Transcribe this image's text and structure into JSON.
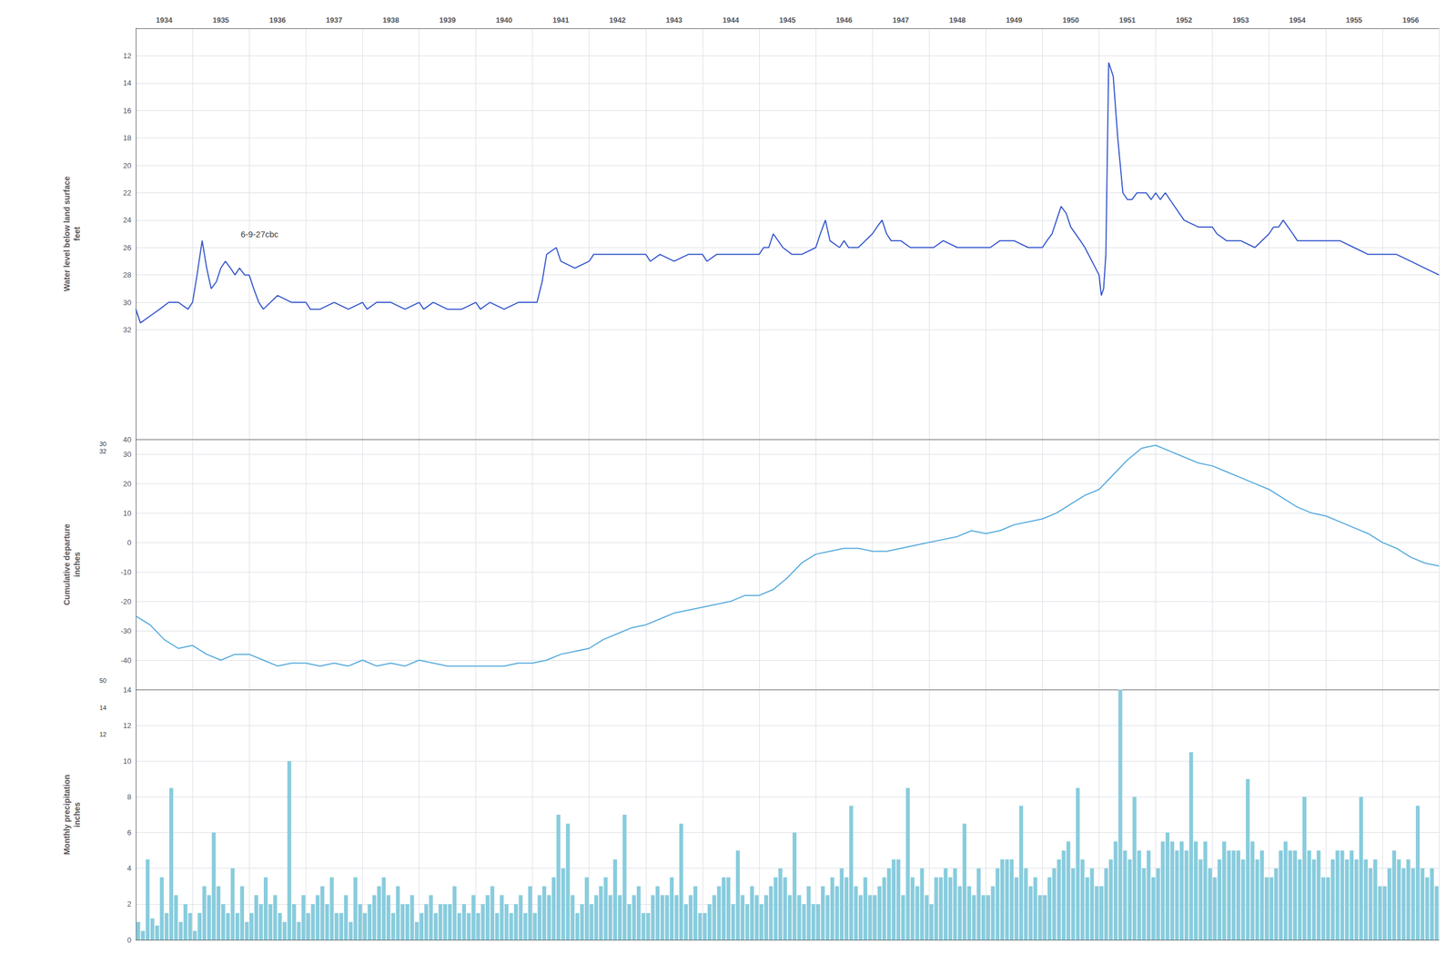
{
  "chart_data": [
    {
      "type": "line",
      "ylabel": "Water level below land surface\nfeet",
      "xlim": [
        1934.0,
        1957.0
      ],
      "xticks": [
        {
          "value": 1934.5,
          "label": "1934"
        },
        {
          "value": 1935.5,
          "label": "1935"
        },
        {
          "value": 1936.5,
          "label": "1936"
        },
        {
          "value": 1937.5,
          "label": "1937"
        },
        {
          "value": 1938.5,
          "label": "1938"
        },
        {
          "value": 1939.5,
          "label": "1939"
        },
        {
          "value": 1940.5,
          "label": "1940"
        },
        {
          "value": 1941.5,
          "label": "1941"
        },
        {
          "value": 1942.5,
          "label": "1942"
        },
        {
          "value": 1943.5,
          "label": "1943"
        },
        {
          "value": 1944.5,
          "label": "1944"
        },
        {
          "value": 1945.5,
          "label": "1945"
        },
        {
          "value": 1946.5,
          "label": "1946"
        },
        {
          "value": 1947.5,
          "label": "1947"
        },
        {
          "value": 1948.5,
          "label": "1948"
        },
        {
          "value": 1949.5,
          "label": "1949"
        },
        {
          "value": 1950.5,
          "label": "1950"
        },
        {
          "value": 1951.5,
          "label": "1951"
        },
        {
          "value": 1952.5,
          "label": "1952"
        },
        {
          "value": 1953.5,
          "label": "1953"
        },
        {
          "value": 1954.5,
          "label": "1954"
        },
        {
          "value": 1955.5,
          "label": "1955"
        },
        {
          "value": 1956.5,
          "label": "1956"
        }
      ],
      "ylim": [
        40,
        10
      ],
      "yticks": [
        12,
        14,
        16,
        18,
        20,
        22,
        24,
        26,
        28,
        30,
        32,
        40
      ],
      "grid": true,
      "color": "#3355cc",
      "annotations": [
        {
          "text": "6-9-27cbc",
          "x": 1935.8,
          "y": 25.0
        }
      ],
      "x": [
        1934.0,
        1934.08,
        1934.25,
        1934.42,
        1934.58,
        1934.75,
        1934.92,
        1935.0,
        1935.08,
        1935.17,
        1935.25,
        1935.33,
        1935.42,
        1935.5,
        1935.58,
        1935.67,
        1935.75,
        1935.83,
        1935.92,
        1936.0,
        1936.08,
        1936.17,
        1936.25,
        1936.5,
        1936.75,
        1937.0,
        1937.08,
        1937.17,
        1937.25,
        1937.5,
        1937.75,
        1938.0,
        1938.08,
        1938.25,
        1938.5,
        1938.75,
        1939.0,
        1939.08,
        1939.25,
        1939.5,
        1939.75,
        1940.0,
        1940.08,
        1940.25,
        1940.5,
        1940.75,
        1941.0,
        1941.08,
        1941.17,
        1941.25,
        1941.42,
        1941.5,
        1941.75,
        1942.0,
        1942.08,
        1942.25,
        1942.5,
        1942.75,
        1943.0,
        1943.08,
        1943.25,
        1943.5,
        1943.75,
        1944.0,
        1944.08,
        1944.25,
        1944.5,
        1944.75,
        1945.0,
        1945.08,
        1945.17,
        1945.25,
        1945.42,
        1945.58,
        1945.75,
        1946.0,
        1946.08,
        1946.17,
        1946.25,
        1946.42,
        1946.5,
        1946.58,
        1946.75,
        1947.0,
        1947.08,
        1947.17,
        1947.25,
        1947.33,
        1947.5,
        1947.67,
        1947.75,
        1948.0,
        1948.08,
        1948.25,
        1948.5,
        1948.75,
        1949.0,
        1949.08,
        1949.25,
        1949.5,
        1949.75,
        1950.0,
        1950.08,
        1950.17,
        1950.25,
        1950.33,
        1950.42,
        1950.5,
        1950.67,
        1950.75,
        1951.0,
        1951.04,
        1951.08,
        1951.12,
        1951.17,
        1951.25,
        1951.33,
        1951.42,
        1951.5,
        1951.58,
        1951.67,
        1951.75,
        1951.83,
        1951.92,
        1952.0,
        1952.08,
        1952.17,
        1952.25,
        1952.5,
        1952.75,
        1953.0,
        1953.08,
        1953.25,
        1953.5,
        1953.75,
        1954.0,
        1954.08,
        1954.17,
        1954.25,
        1954.42,
        1954.5,
        1954.75,
        1955.0,
        1955.08,
        1955.25,
        1955.5,
        1955.75,
        1956.0,
        1956.08,
        1956.25,
        1956.5,
        1956.75,
        1957.0
      ],
      "values": [
        30.5,
        31.5,
        31.0,
        30.5,
        30.0,
        30.0,
        30.5,
        30.0,
        28.0,
        25.5,
        27.5,
        29.0,
        28.5,
        27.5,
        27.0,
        27.5,
        28.0,
        27.5,
        28.0,
        28.0,
        29.0,
        30.0,
        30.5,
        29.5,
        30.0,
        30.0,
        30.5,
        30.5,
        30.5,
        30.0,
        30.5,
        30.0,
        30.5,
        30.0,
        30.0,
        30.5,
        30.0,
        30.5,
        30.0,
        30.5,
        30.5,
        30.0,
        30.5,
        30.0,
        30.5,
        30.0,
        30.0,
        30.0,
        28.5,
        26.5,
        26.0,
        27.0,
        27.5,
        27.0,
        26.5,
        26.5,
        26.5,
        26.5,
        26.5,
        27.0,
        26.5,
        27.0,
        26.5,
        26.5,
        27.0,
        26.5,
        26.5,
        26.5,
        26.5,
        26.0,
        26.0,
        25.0,
        26.0,
        26.5,
        26.5,
        26.0,
        25.0,
        24.0,
        25.5,
        26.0,
        25.5,
        26.0,
        26.0,
        25.0,
        24.5,
        24.0,
        25.0,
        25.5,
        25.5,
        26.0,
        26.0,
        26.0,
        26.0,
        25.5,
        26.0,
        26.0,
        26.0,
        26.0,
        25.5,
        25.5,
        26.0,
        26.0,
        25.5,
        25.0,
        24.0,
        23.0,
        23.5,
        24.5,
        25.5,
        26.0,
        28.0,
        29.5,
        29.0,
        26.5,
        12.5,
        13.5,
        18.0,
        22.0,
        22.5,
        22.5,
        22.0,
        22.0,
        22.0,
        22.5,
        22.0,
        22.5,
        22.0,
        22.5,
        24.0,
        24.5,
        24.5,
        25.0,
        25.5,
        25.5,
        26.0,
        25.0,
        24.5,
        24.5,
        24.0,
        25.0,
        25.5,
        25.5,
        25.5,
        25.5,
        25.5,
        26.0,
        26.5,
        26.5,
        26.5,
        26.5,
        27.0,
        27.5,
        28.0
      ]
    },
    {
      "type": "line",
      "ylabel": "Cumulative departure\ninches",
      "xlim": [
        1934.0,
        1957.0
      ],
      "ylim": [
        -50,
        35
      ],
      "yticks": [
        -40,
        -30,
        -20,
        -10,
        0,
        10,
        20,
        30
      ],
      "grid": true,
      "tick_labels": "y",
      "color": "#55aadd",
      "annotations": [
        {
          "text": "30",
          "y": 33.5
        },
        {
          "text": "32",
          "y": 31.0
        }
      ],
      "x": [
        1934.0,
        1934.25,
        1934.5,
        1934.75,
        1935.0,
        1935.25,
        1935.5,
        1935.75,
        1936.0,
        1936.25,
        1936.5,
        1936.75,
        1937.0,
        1937.25,
        1937.5,
        1937.75,
        1938.0,
        1938.25,
        1938.5,
        1938.75,
        1939.0,
        1939.25,
        1939.5,
        1939.75,
        1940.0,
        1940.25,
        1940.5,
        1940.75,
        1941.0,
        1941.25,
        1941.5,
        1941.75,
        1942.0,
        1942.25,
        1942.5,
        1942.75,
        1943.0,
        1943.25,
        1943.5,
        1943.75,
        1944.0,
        1944.25,
        1944.5,
        1944.75,
        1945.0,
        1945.25,
        1945.5,
        1945.75,
        1946.0,
        1946.25,
        1946.5,
        1946.75,
        1947.0,
        1947.25,
        1947.5,
        1947.75,
        1948.0,
        1948.25,
        1948.5,
        1948.75,
        1949.0,
        1949.25,
        1949.5,
        1949.75,
        1950.0,
        1950.25,
        1950.5,
        1950.75,
        1951.0,
        1951.25,
        1951.5,
        1951.75,
        1952.0,
        1952.25,
        1952.5,
        1952.75,
        1953.0,
        1953.25,
        1953.5,
        1953.75,
        1954.0,
        1954.25,
        1954.5,
        1954.75,
        1955.0,
        1955.25,
        1955.5,
        1955.75,
        1956.0,
        1956.25,
        1956.5,
        1956.75,
        1957.0
      ],
      "values": [
        -25,
        -28,
        -33,
        -36,
        -35,
        -38,
        -40,
        -38,
        -38,
        -40,
        -42,
        -41,
        -41,
        -42,
        -41,
        -42,
        -40,
        -42,
        -41,
        -42,
        -40,
        -41,
        -42,
        -42,
        -42,
        -42,
        -42,
        -41,
        -41,
        -40,
        -38,
        -37,
        -36,
        -33,
        -31,
        -29,
        -28,
        -26,
        -24,
        -23,
        -22,
        -21,
        -20,
        -18,
        -18,
        -16,
        -12,
        -7,
        -4,
        -3,
        -2,
        -2,
        -3,
        -3,
        -2,
        -1,
        0,
        1,
        2,
        4,
        3,
        4,
        6,
        7,
        8,
        10,
        13,
        16,
        18,
        23,
        28,
        32,
        33,
        31,
        29,
        27,
        26,
        24,
        22,
        20,
        18,
        15,
        12,
        10,
        9,
        7,
        5,
        3,
        0,
        -2,
        -5,
        -7,
        -8
      ]
    },
    {
      "type": "bar",
      "ylabel": "Monthly precipitation\ninches",
      "xlim": [
        1934.0,
        1957.0
      ],
      "ylim": [
        0,
        14
      ],
      "yticks": [
        0,
        2,
        4,
        6,
        8,
        10,
        12,
        14
      ],
      "grid": true,
      "tick_labels": "y",
      "color": "#88ccdd",
      "annotations": [
        {
          "text": "50",
          "y": 14.5
        },
        {
          "text": "14",
          "y": 13.0
        },
        {
          "text": "12",
          "y": 11.5
        }
      ],
      "x": [
        1934.042,
        1934.125,
        1934.208,
        1934.292,
        1934.375,
        1934.458,
        1934.542,
        1934.625,
        1934.708,
        1934.792,
        1934.875,
        1934.958,
        1935.042,
        1935.125,
        1935.208,
        1935.292,
        1935.375,
        1935.458,
        1935.542,
        1935.625,
        1935.708,
        1935.792,
        1935.875,
        1935.958,
        1936.042,
        1936.125,
        1936.208,
        1936.292,
        1936.375,
        1936.458,
        1936.542,
        1936.625,
        1936.708,
        1936.792,
        1936.875,
        1936.958,
        1937.042,
        1937.125,
        1937.208,
        1937.292,
        1937.375,
        1937.458,
        1937.542,
        1937.625,
        1937.708,
        1937.792,
        1937.875,
        1937.958,
        1938.042,
        1938.125,
        1938.208,
        1938.292,
        1938.375,
        1938.458,
        1938.542,
        1938.625,
        1938.708,
        1938.792,
        1938.875,
        1938.958,
        1939.042,
        1939.125,
        1939.208,
        1939.292,
        1939.375,
        1939.458,
        1939.542,
        1939.625,
        1939.708,
        1939.792,
        1939.875,
        1939.958,
        1940.042,
        1940.125,
        1940.208,
        1940.292,
        1940.375,
        1940.458,
        1940.542,
        1940.625,
        1940.708,
        1940.792,
        1940.875,
        1940.958,
        1941.042,
        1941.125,
        1941.208,
        1941.292,
        1941.375,
        1941.458,
        1941.542,
        1941.625,
        1941.708,
        1941.792,
        1941.875,
        1941.958,
        1942.042,
        1942.125,
        1942.208,
        1942.292,
        1942.375,
        1942.458,
        1942.542,
        1942.625,
        1942.708,
        1942.792,
        1942.875,
        1942.958,
        1943.042,
        1943.125,
        1943.208,
        1943.292,
        1943.375,
        1943.458,
        1943.542,
        1943.625,
        1943.708,
        1943.792,
        1943.875,
        1943.958,
        1944.042,
        1944.125,
        1944.208,
        1944.292,
        1944.375,
        1944.458,
        1944.542,
        1944.625,
        1944.708,
        1944.792,
        1944.875,
        1944.958,
        1945.042,
        1945.125,
        1945.208,
        1945.292,
        1945.375,
        1945.458,
        1945.542,
        1945.625,
        1945.708,
        1945.792,
        1945.875,
        1945.958,
        1946.042,
        1946.125,
        1946.208,
        1946.292,
        1946.375,
        1946.458,
        1946.542,
        1946.625,
        1946.708,
        1946.792,
        1946.875,
        1946.958,
        1947.042,
        1947.125,
        1947.208,
        1947.292,
        1947.375,
        1947.458,
        1947.542,
        1947.625,
        1947.708,
        1947.792,
        1947.875,
        1947.958,
        1948.042,
        1948.125,
        1948.208,
        1948.292,
        1948.375,
        1948.458,
        1948.542,
        1948.625,
        1948.708,
        1948.792,
        1948.875,
        1948.958,
        1949.042,
        1949.125,
        1949.208,
        1949.292,
        1949.375,
        1949.458,
        1949.542,
        1949.625,
        1949.708,
        1949.792,
        1949.875,
        1949.958,
        1950.042,
        1950.125,
        1950.208,
        1950.292,
        1950.375,
        1950.458,
        1950.542,
        1950.625,
        1950.708,
        1950.792,
        1950.875,
        1950.958,
        1951.042,
        1951.125,
        1951.208,
        1951.292,
        1951.375,
        1951.458,
        1951.542,
        1951.625,
        1951.708,
        1951.792,
        1951.875,
        1951.958,
        1952.042,
        1952.125,
        1952.208,
        1952.292,
        1952.375,
        1952.458,
        1952.542,
        1952.625,
        1952.708,
        1952.792,
        1952.875,
        1952.958,
        1953.042,
        1953.125,
        1953.208,
        1953.292,
        1953.375,
        1953.458,
        1953.542,
        1953.625,
        1953.708,
        1953.792,
        1953.875,
        1953.958,
        1954.042,
        1954.125,
        1954.208,
        1954.292,
        1954.375,
        1954.458,
        1954.542,
        1954.625,
        1954.708,
        1954.792,
        1954.875,
        1954.958,
        1955.042,
        1955.125,
        1955.208,
        1955.292,
        1955.375,
        1955.458,
        1955.542,
        1955.625,
        1955.708,
        1955.792,
        1955.875,
        1955.958,
        1956.042,
        1956.125,
        1956.208,
        1956.292,
        1956.375,
        1956.458,
        1956.542,
        1956.625,
        1956.708,
        1956.792,
        1956.875,
        1956.958
      ],
      "values": [
        1.0,
        0.5,
        4.5,
        1.2,
        0.8,
        3.5,
        1.5,
        8.5,
        2.5,
        1.0,
        2.0,
        1.5,
        0.5,
        1.5,
        3.0,
        2.5,
        6.0,
        3.0,
        2.0,
        1.5,
        4.0,
        1.5,
        3.0,
        1.0,
        1.5,
        2.5,
        2.0,
        3.5,
        2.0,
        2.5,
        1.5,
        1.0,
        10.0,
        2.0,
        1.0,
        2.5,
        1.5,
        2.0,
        2.5,
        3.0,
        2.0,
        3.5,
        1.5,
        1.5,
        2.5,
        1.0,
        3.5,
        2.0,
        1.5,
        2.0,
        2.5,
        3.0,
        3.5,
        2.5,
        1.5,
        3.0,
        2.0,
        2.0,
        2.5,
        1.0,
        1.5,
        2.0,
        2.5,
        1.5,
        2.0,
        2.0,
        2.0,
        3.0,
        1.5,
        2.0,
        1.5,
        2.5,
        1.5,
        2.0,
        2.5,
        3.0,
        1.5,
        2.5,
        2.0,
        1.5,
        2.0,
        2.5,
        1.5,
        3.0,
        1.5,
        2.5,
        3.0,
        2.5,
        3.5,
        7.0,
        4.0,
        6.5,
        2.5,
        1.5,
        2.0,
        3.5,
        2.0,
        2.5,
        3.0,
        3.5,
        2.5,
        4.5,
        2.5,
        7.0,
        2.0,
        2.5,
        3.0,
        1.5,
        1.5,
        2.5,
        3.0,
        2.5,
        2.5,
        3.5,
        2.5,
        6.5,
        2.0,
        2.5,
        3.0,
        1.5,
        1.5,
        2.0,
        2.5,
        3.0,
        3.5,
        3.5,
        2.0,
        5.0,
        2.5,
        2.0,
        3.0,
        2.5,
        2.0,
        2.5,
        3.0,
        3.5,
        4.0,
        3.5,
        2.5,
        6.0,
        2.5,
        2.0,
        3.0,
        2.0,
        2.0,
        3.0,
        2.5,
        3.5,
        3.0,
        4.0,
        3.5,
        7.5,
        3.0,
        2.5,
        3.5,
        2.5,
        2.5,
        3.0,
        3.5,
        4.0,
        4.5,
        4.5,
        2.5,
        8.5,
        3.5,
        3.0,
        4.0,
        2.5,
        2.0,
        3.5,
        3.5,
        4.0,
        3.5,
        4.0,
        3.0,
        6.5,
        3.0,
        2.5,
        4.0,
        2.5,
        2.5,
        3.0,
        4.0,
        4.5,
        4.5,
        4.5,
        3.5,
        7.5,
        4.0,
        3.0,
        3.5,
        2.5,
        2.5,
        3.5,
        4.0,
        4.5,
        5.0,
        5.5,
        4.0,
        8.5,
        4.5,
        3.5,
        4.0,
        3.0,
        3.0,
        4.0,
        4.5,
        5.5,
        14.0,
        5.0,
        4.5,
        8.0,
        5.0,
        4.0,
        5.0,
        3.5,
        4.0,
        5.5,
        6.0,
        5.5,
        5.0,
        5.5,
        5.0,
        10.5,
        5.5,
        4.5,
        5.5,
        4.0,
        3.5,
        4.5,
        5.5,
        5.0,
        5.0,
        5.0,
        4.5,
        9.0,
        5.5,
        4.5,
        5.0,
        3.5,
        3.5,
        4.0,
        5.0,
        5.5,
        5.0,
        5.0,
        4.5,
        8.0,
        5.0,
        4.5,
        5.0,
        3.5,
        3.5,
        4.5,
        5.0,
        5.0,
        4.5,
        5.0,
        4.5,
        8.0,
        4.5,
        4.0,
        4.5,
        3.0,
        3.0,
        4.0,
        5.0,
        4.5,
        4.0,
        4.5,
        4.0,
        7.5,
        4.0,
        3.5,
        4.0,
        3.0
      ]
    }
  ]
}
